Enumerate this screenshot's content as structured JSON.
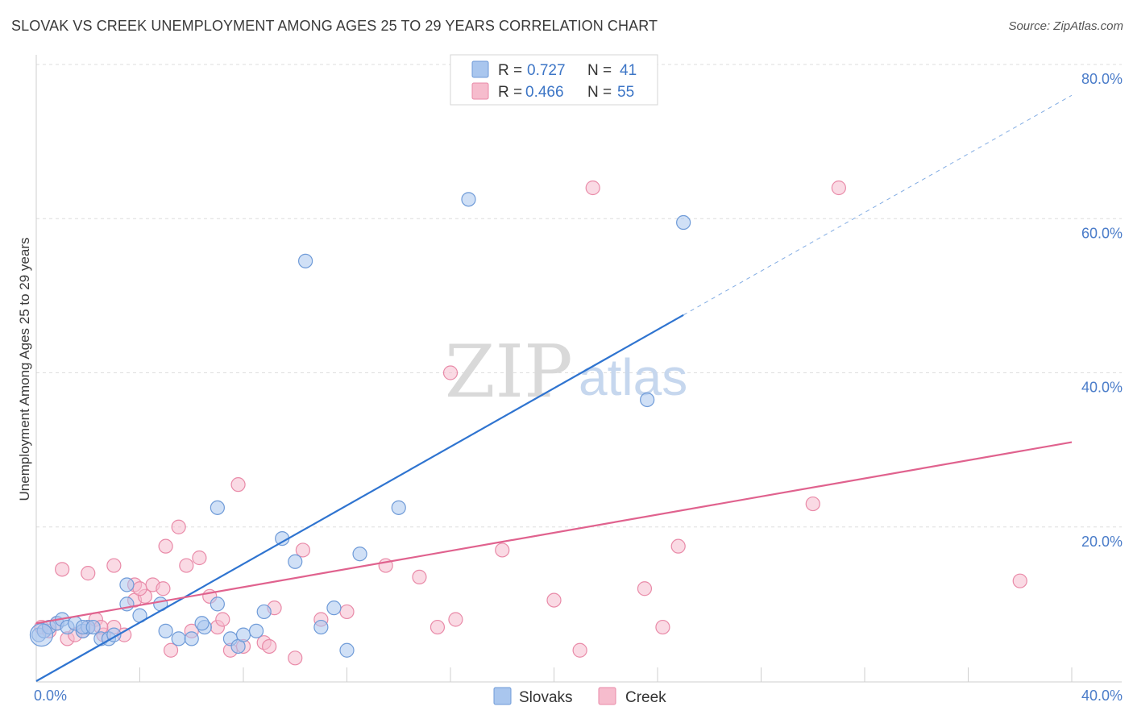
{
  "title": "SLOVAK VS CREEK UNEMPLOYMENT AMONG AGES 25 TO 29 YEARS CORRELATION CHART",
  "source": "Source: ZipAtlas.com",
  "watermark": {
    "zip": "ZIP",
    "atlas": "atlas"
  },
  "legend_top": {
    "rows": [
      {
        "r_label": "R = ",
        "r_value": "0.727",
        "n_label": "N = ",
        "n_value": "41"
      },
      {
        "r_label": "R = ",
        "r_value": "0.466",
        "n_label": "N = ",
        "n_value": "55"
      }
    ]
  },
  "colors": {
    "slovak_fill": "#a9c6ee",
    "slovak_stroke": "#6f9bd8",
    "slovak_line": "#2f74d0",
    "creek_fill": "#f6bccd",
    "creek_stroke": "#e98aa8",
    "creek_line": "#e0628e",
    "grid": "#dedede",
    "accent_text": "#3c75c6"
  },
  "chart_data": {
    "type": "scatter",
    "title": "SLOVAK VS CREEK UNEMPLOYMENT AMONG AGES 25 TO 29 YEARS CORRELATION CHART",
    "xlabel": "",
    "ylabel": "Unemployment Among Ages 25 to 29 years",
    "xlim": [
      0,
      40
    ],
    "ylim": [
      0,
      80
    ],
    "x_tick_labels": [
      "0.0%",
      "40.0%"
    ],
    "y_ticks": [
      20,
      40,
      60,
      80
    ],
    "y_tick_labels": [
      "20.0%",
      "40.0%",
      "60.0%",
      "80.0%"
    ],
    "grid": true,
    "legend_position": "top-center",
    "series": [
      {
        "name": "Slovaks",
        "r": 0.727,
        "n": 41,
        "trend": {
          "x0": 0,
          "y0": 0,
          "x1_solid": 25,
          "y1_solid": 47.5,
          "x1_dashed": 40,
          "y1_dashed": 76
        },
        "points": [
          [
            0.1,
            6.0
          ],
          [
            0.3,
            6.5
          ],
          [
            0.5,
            7.0
          ],
          [
            0.8,
            7.5
          ],
          [
            1.0,
            8.0
          ],
          [
            1.2,
            7.0
          ],
          [
            1.5,
            7.5
          ],
          [
            1.8,
            6.5
          ],
          [
            2.0,
            7.0
          ],
          [
            2.5,
            5.5
          ],
          [
            2.8,
            5.5
          ],
          [
            3.0,
            6.0
          ],
          [
            3.5,
            10.0
          ],
          [
            4.8,
            10.0
          ],
          [
            5.0,
            6.5
          ],
          [
            5.5,
            5.5
          ],
          [
            6.0,
            5.5
          ],
          [
            6.5,
            7.0
          ],
          [
            7.0,
            10.0
          ],
          [
            7.5,
            5.5
          ],
          [
            7.8,
            4.5
          ],
          [
            3.5,
            12.5
          ],
          [
            8.0,
            6.0
          ],
          [
            8.5,
            6.5
          ],
          [
            8.8,
            9.0
          ],
          [
            9.5,
            18.5
          ],
          [
            10.0,
            15.5
          ],
          [
            11.0,
            7.0
          ],
          [
            11.5,
            9.5
          ],
          [
            12.0,
            4.0
          ],
          [
            12.5,
            16.5
          ],
          [
            14.0,
            22.5
          ],
          [
            16.7,
            62.5
          ],
          [
            10.4,
            54.5
          ],
          [
            25.0,
            59.5
          ],
          [
            23.6,
            36.5
          ],
          [
            7.0,
            22.5
          ],
          [
            6.4,
            7.5
          ],
          [
            1.8,
            7.0
          ],
          [
            2.2,
            7.0
          ],
          [
            4.0,
            8.5
          ]
        ]
      },
      {
        "name": "Creek",
        "r": 0.466,
        "n": 55,
        "trend": {
          "x0": 0,
          "y0": 7.5,
          "x1_solid": 40,
          "y1_solid": 31.0
        },
        "points": [
          [
            0.2,
            7.0
          ],
          [
            0.5,
            6.5
          ],
          [
            0.8,
            7.5
          ],
          [
            1.2,
            5.5
          ],
          [
            1.5,
            6.0
          ],
          [
            1.8,
            6.5
          ],
          [
            2.0,
            7.0
          ],
          [
            2.3,
            8.0
          ],
          [
            2.6,
            6.0
          ],
          [
            3.0,
            7.0
          ],
          [
            3.4,
            6.0
          ],
          [
            3.8,
            10.5
          ],
          [
            4.2,
            11.0
          ],
          [
            4.5,
            12.5
          ],
          [
            4.9,
            12.0
          ],
          [
            5.2,
            4.0
          ],
          [
            5.5,
            20.0
          ],
          [
            5.8,
            15.0
          ],
          [
            6.0,
            6.5
          ],
          [
            6.3,
            16.0
          ],
          [
            6.7,
            11.0
          ],
          [
            7.0,
            7.0
          ],
          [
            7.5,
            4.0
          ],
          [
            7.8,
            25.5
          ],
          [
            8.0,
            4.5
          ],
          [
            8.8,
            5.0
          ],
          [
            9.2,
            9.5
          ],
          [
            10.0,
            3.0
          ],
          [
            10.3,
            17.0
          ],
          [
            11.0,
            8.0
          ],
          [
            12.0,
            9.0
          ],
          [
            13.5,
            15.0
          ],
          [
            14.8,
            13.5
          ],
          [
            15.5,
            7.0
          ],
          [
            16.2,
            8.0
          ],
          [
            16.0,
            40.0
          ],
          [
            18.0,
            17.0
          ],
          [
            20.0,
            10.5
          ],
          [
            21.0,
            4.0
          ],
          [
            21.5,
            64.0
          ],
          [
            23.5,
            12.0
          ],
          [
            24.2,
            7.0
          ],
          [
            24.8,
            17.5
          ],
          [
            30.0,
            23.0
          ],
          [
            31.0,
            64.0
          ],
          [
            38.0,
            13.0
          ],
          [
            1.0,
            14.5
          ],
          [
            2.0,
            14.0
          ],
          [
            3.8,
            12.5
          ],
          [
            3.0,
            15.0
          ],
          [
            5.0,
            17.5
          ],
          [
            7.2,
            8.0
          ],
          [
            9.0,
            4.5
          ],
          [
            4.0,
            12.0
          ],
          [
            2.5,
            7.0
          ]
        ]
      }
    ]
  }
}
